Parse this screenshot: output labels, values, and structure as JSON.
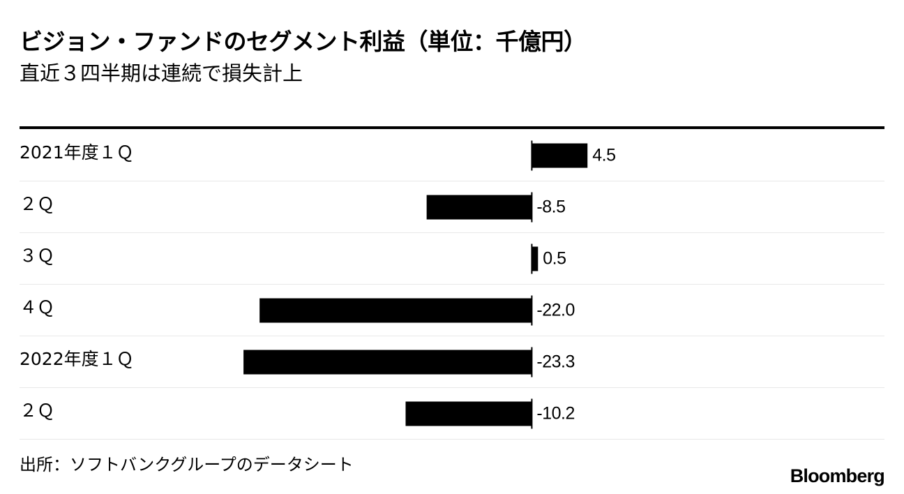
{
  "title": "ビジョン・ファンドのセグメント利益（単位：千億円）",
  "subtitle": "直近３四半期は連続で損失計上",
  "source": "出所：ソフトバンクグループのデータシート",
  "brand": "Bloomberg",
  "colors": {
    "bar": "#000000",
    "separator": "#e8e8e8",
    "text": "#000000"
  },
  "chart_data": {
    "type": "bar",
    "orientation": "horizontal",
    "categories": [
      "2021年度１Ｑ",
      "２Ｑ",
      "３Ｑ",
      "４Ｑ",
      "2022年度１Ｑ",
      "２Ｑ"
    ],
    "values": [
      4.5,
      -8.5,
      0.5,
      -22.0,
      -23.3,
      -10.2
    ],
    "value_labels": [
      "4.5",
      "-8.5",
      "0.5",
      "-22.0",
      "-23.3",
      "-10.2"
    ],
    "title": "ビジョン・ファンドのセグメント利益（単位：千億円）",
    "subtitle": "直近３四半期は連続で損失計上",
    "xlim": [
      -41.4,
      28.5
    ],
    "grid": false,
    "legend": "none"
  }
}
